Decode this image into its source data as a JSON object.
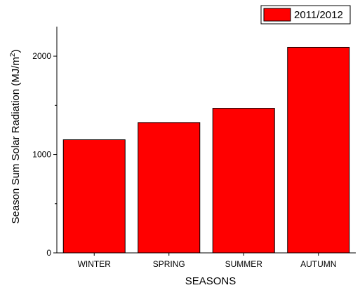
{
  "chart_data": {
    "type": "bar",
    "categories": [
      "WINTER",
      "SPRING",
      "SUMMER",
      "AUTUMN"
    ],
    "series": [
      {
        "name": "2011/2012",
        "values": [
          1150,
          1325,
          1470,
          2090
        ]
      }
    ],
    "xlabel": "SEASONS",
    "ylabel": {
      "main": "Season Sum Solar Radiation (MJ/m",
      "superscript": "2",
      "close": ")"
    },
    "ylim": [
      0,
      2300
    ],
    "yticks": [
      0,
      1000,
      2000
    ],
    "ytick_labels": [
      "0",
      "1000",
      "2000"
    ],
    "grid": false,
    "legend_position": "top-right",
    "colors": {
      "bar": "#ff0000",
      "bar_edge": "#000000"
    }
  }
}
